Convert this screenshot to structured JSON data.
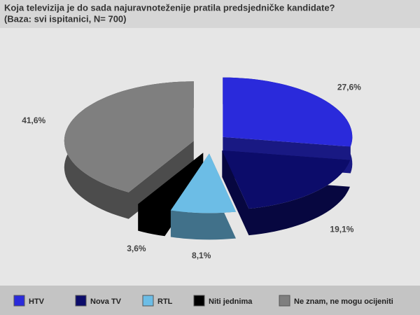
{
  "chart_data": {
    "type": "pie",
    "title": "Koja televizija je do sada najuravnoteženije pratila predsjedničke kandidate?",
    "subtitle": "(Baza: svi ispitanici, N= 700)",
    "categories": [
      "HTV",
      "Nova TV",
      "RTL",
      "Niti jednima",
      "Ne znam, ne mogu ocijeniti"
    ],
    "values": [
      27.6,
      19.1,
      8.1,
      3.6,
      41.6
    ],
    "value_labels": [
      "27,6%",
      "19,1%",
      "8,1%",
      "3,6%",
      "41,6%"
    ],
    "colors": [
      "#2a2adb",
      "#0c0c6a",
      "#6cbde6",
      "#000000",
      "#7f7f7f"
    ]
  }
}
